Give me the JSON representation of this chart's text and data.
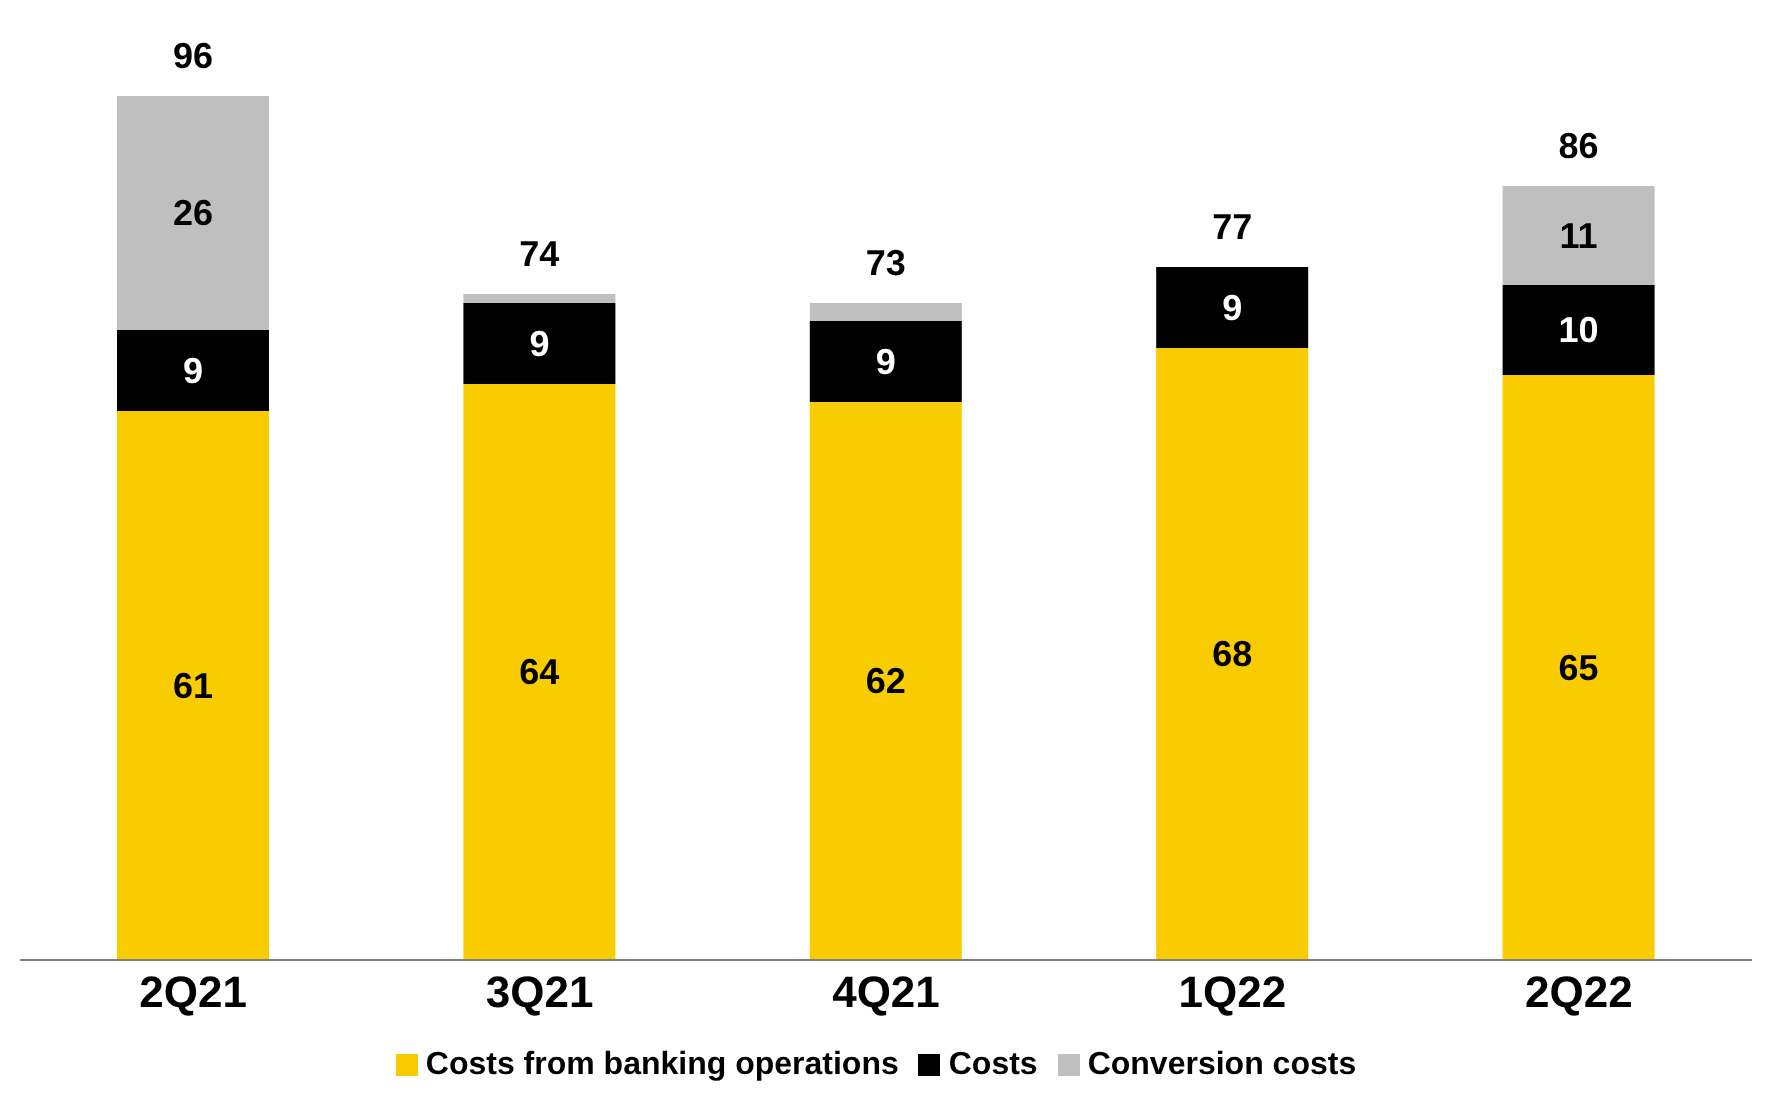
{
  "chart_data": {
    "type": "bar",
    "stacked": true,
    "categories": [
      "2Q21",
      "3Q21",
      "4Q21",
      "1Q22",
      "2Q22"
    ],
    "series": [
      {
        "name": "Costs from banking operations",
        "color": "#f9cc00",
        "values": [
          61,
          64,
          62,
          68,
          65
        ],
        "value_labels": [
          "61",
          "64",
          "62",
          "68",
          "65"
        ]
      },
      {
        "name": "Costs",
        "color": "#000000",
        "values": [
          9,
          9,
          9,
          9,
          10
        ],
        "value_labels": [
          "9",
          "9",
          "9",
          "9",
          "10"
        ]
      },
      {
        "name": "Conversion costs",
        "color": "#bfbfbf",
        "values": [
          26,
          1,
          2,
          0,
          11
        ],
        "value_labels": [
          "26",
          null,
          null,
          null,
          "11"
        ]
      }
    ],
    "totals": [
      "96",
      "74",
      "73",
      "77",
      "86"
    ],
    "legend": "bottom"
  }
}
